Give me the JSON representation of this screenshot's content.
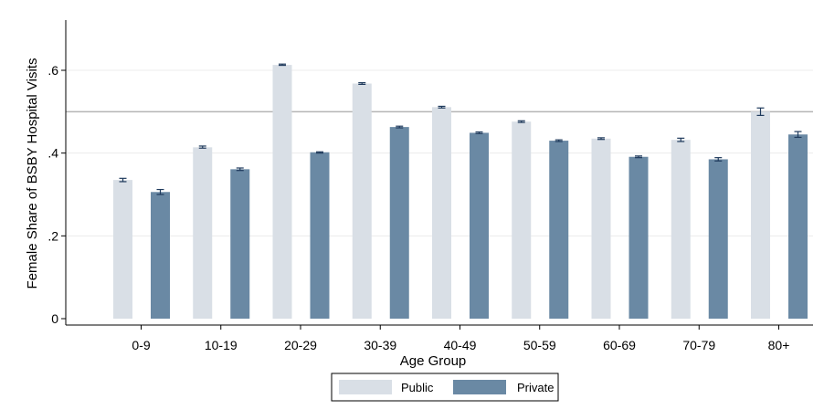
{
  "chart_data": {
    "type": "bar",
    "title": "",
    "xlabel": "Age Group",
    "ylabel": "Female Share of BSBY Hospital Visits",
    "categories": [
      "0-9",
      "10-19",
      "20-29",
      "30-39",
      "40-49",
      "50-59",
      "60-69",
      "70-79",
      "80+"
    ],
    "series": [
      {
        "name": "Public",
        "color": "#d9dfe6",
        "values": [
          0.335,
          0.414,
          0.613,
          0.568,
          0.511,
          0.476,
          0.435,
          0.432,
          0.5
        ],
        "error_low": [
          0.331,
          0.412,
          0.612,
          0.566,
          0.509,
          0.474,
          0.433,
          0.428,
          0.491
        ],
        "error_high": [
          0.339,
          0.417,
          0.615,
          0.57,
          0.513,
          0.478,
          0.437,
          0.436,
          0.509
        ]
      },
      {
        "name": "Private",
        "color": "#6a89a4",
        "values": [
          0.306,
          0.361,
          0.402,
          0.463,
          0.449,
          0.43,
          0.391,
          0.385,
          0.445
        ],
        "error_low": [
          0.3,
          0.358,
          0.4,
          0.461,
          0.447,
          0.428,
          0.389,
          0.381,
          0.438
        ],
        "error_high": [
          0.312,
          0.364,
          0.403,
          0.465,
          0.451,
          0.432,
          0.393,
          0.389,
          0.452
        ]
      }
    ],
    "ylim": [
      0,
      0.72
    ],
    "yticks": [
      0,
      0.2,
      0.4,
      0.6
    ],
    "ytick_labels": [
      "0",
      ".2",
      ".4",
      ".6"
    ],
    "reference_line": 0.5,
    "grid": true,
    "legend_position": "bottom-center",
    "error_bar_color": "#1f3a5c",
    "reference_line_color": "#b4b4b4"
  }
}
